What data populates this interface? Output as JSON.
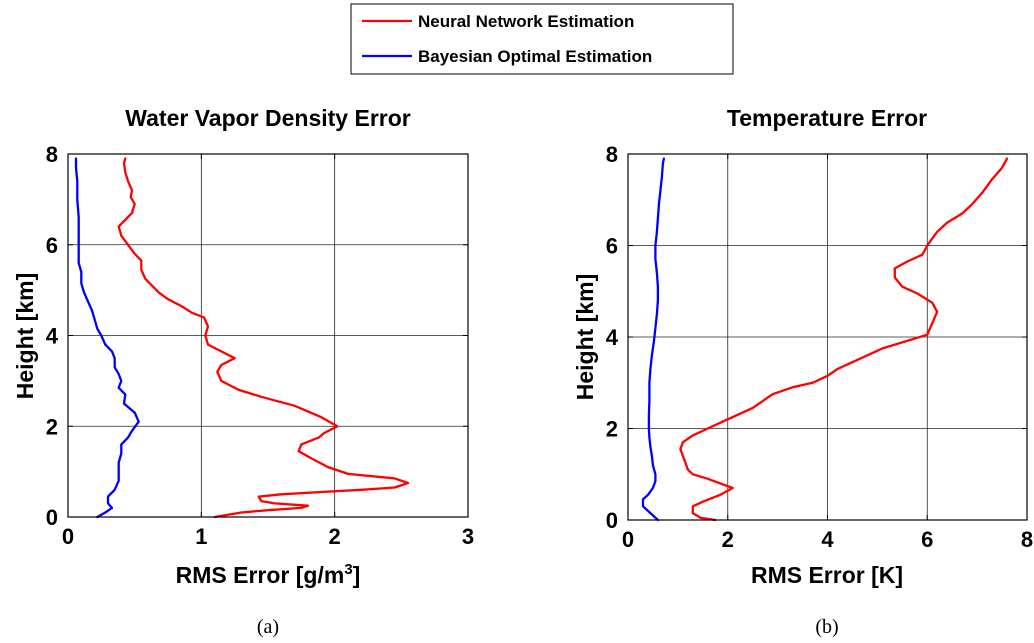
{
  "legend": {
    "entries": [
      {
        "label": "Neural Network Estimation",
        "color": "#ff0000"
      },
      {
        "label": "Bayesian Optimal Estimation",
        "color": "#0000ff"
      }
    ]
  },
  "chart_data": [
    {
      "type": "line",
      "title": "Water Vapor Density Error",
      "xlabel": "RMS Error [g/m",
      "xlabel_sup": "3",
      "xlabel_end": "]",
      "ylabel": "Height [km]",
      "xlim": [
        0,
        3
      ],
      "ylim": [
        0,
        8
      ],
      "xticks": [
        "0",
        "1",
        "2",
        "3"
      ],
      "yticks": [
        "0",
        "2",
        "4",
        "6",
        "8"
      ],
      "grid": true,
      "caption": "(a)",
      "series": [
        {
          "name": "Neural Network Estimation",
          "color": "#ff0000",
          "points": [
            [
              1.1,
              0.0
            ],
            [
              1.3,
              0.1
            ],
            [
              1.5,
              0.15
            ],
            [
              1.75,
              0.2
            ],
            [
              1.8,
              0.25
            ],
            [
              1.55,
              0.3
            ],
            [
              1.45,
              0.35
            ],
            [
              1.43,
              0.45
            ],
            [
              1.6,
              0.5
            ],
            [
              1.9,
              0.55
            ],
            [
              2.2,
              0.6
            ],
            [
              2.45,
              0.65
            ],
            [
              2.55,
              0.75
            ],
            [
              2.45,
              0.85
            ],
            [
              2.1,
              0.95
            ],
            [
              1.95,
              1.1
            ],
            [
              1.82,
              1.3
            ],
            [
              1.73,
              1.45
            ],
            [
              1.75,
              1.6
            ],
            [
              1.88,
              1.75
            ],
            [
              1.92,
              1.85
            ],
            [
              2.02,
              2.0
            ],
            [
              1.9,
              2.2
            ],
            [
              1.7,
              2.45
            ],
            [
              1.45,
              2.65
            ],
            [
              1.28,
              2.8
            ],
            [
              1.15,
              3.0
            ],
            [
              1.12,
              3.2
            ],
            [
              1.15,
              3.35
            ],
            [
              1.25,
              3.5
            ],
            [
              1.15,
              3.65
            ],
            [
              1.05,
              3.8
            ],
            [
              1.03,
              4.0
            ],
            [
              1.05,
              4.2
            ],
            [
              1.02,
              4.4
            ],
            [
              0.93,
              4.5
            ],
            [
              0.85,
              4.65
            ],
            [
              0.75,
              4.8
            ],
            [
              0.68,
              4.95
            ],
            [
              0.63,
              5.1
            ],
            [
              0.58,
              5.25
            ],
            [
              0.55,
              5.45
            ],
            [
              0.55,
              5.65
            ],
            [
              0.5,
              5.8
            ],
            [
              0.45,
              6.0
            ],
            [
              0.4,
              6.2
            ],
            [
              0.38,
              6.4
            ],
            [
              0.43,
              6.55
            ],
            [
              0.48,
              6.7
            ],
            [
              0.5,
              6.9
            ],
            [
              0.47,
              7.05
            ],
            [
              0.48,
              7.2
            ],
            [
              0.45,
              7.4
            ],
            [
              0.43,
              7.6
            ],
            [
              0.42,
              7.8
            ],
            [
              0.43,
              7.9
            ]
          ]
        },
        {
          "name": "Bayesian Optimal Estimation",
          "color": "#0000ff",
          "points": [
            [
              0.22,
              0.0
            ],
            [
              0.28,
              0.1
            ],
            [
              0.33,
              0.2
            ],
            [
              0.3,
              0.3
            ],
            [
              0.3,
              0.45
            ],
            [
              0.35,
              0.6
            ],
            [
              0.38,
              0.8
            ],
            [
              0.38,
              1.0
            ],
            [
              0.38,
              1.2
            ],
            [
              0.4,
              1.4
            ],
            [
              0.4,
              1.6
            ],
            [
              0.45,
              1.75
            ],
            [
              0.48,
              1.9
            ],
            [
              0.53,
              2.1
            ],
            [
              0.5,
              2.3
            ],
            [
              0.42,
              2.5
            ],
            [
              0.43,
              2.7
            ],
            [
              0.38,
              2.85
            ],
            [
              0.4,
              3.0
            ],
            [
              0.38,
              3.15
            ],
            [
              0.35,
              3.3
            ],
            [
              0.35,
              3.5
            ],
            [
              0.33,
              3.65
            ],
            [
              0.28,
              3.8
            ],
            [
              0.25,
              4.0
            ],
            [
              0.22,
              4.15
            ],
            [
              0.2,
              4.35
            ],
            [
              0.18,
              4.55
            ],
            [
              0.15,
              4.75
            ],
            [
              0.12,
              4.95
            ],
            [
              0.1,
              5.15
            ],
            [
              0.1,
              5.4
            ],
            [
              0.08,
              5.6
            ],
            [
              0.08,
              5.9
            ],
            [
              0.08,
              6.2
            ],
            [
              0.08,
              6.6
            ],
            [
              0.07,
              7.0
            ],
            [
              0.07,
              7.4
            ],
            [
              0.06,
              7.7
            ],
            [
              0.06,
              7.9
            ]
          ]
        }
      ]
    },
    {
      "type": "line",
      "title": "Temperature Error",
      "xlabel": "RMS Error [K]",
      "ylabel": "Height [km]",
      "xlim": [
        0,
        8
      ],
      "ylim": [
        0,
        8
      ],
      "xticks": [
        "0",
        "2",
        "4",
        "6",
        "8"
      ],
      "yticks": [
        "0",
        "2",
        "4",
        "6",
        "8"
      ],
      "grid": true,
      "caption": "(b)",
      "series": [
        {
          "name": "Neural Network Estimation",
          "color": "#ff0000",
          "points": [
            [
              1.75,
              0.0
            ],
            [
              1.45,
              0.05
            ],
            [
              1.3,
              0.15
            ],
            [
              1.3,
              0.3
            ],
            [
              1.5,
              0.4
            ],
            [
              1.85,
              0.55
            ],
            [
              2.1,
              0.7
            ],
            [
              1.85,
              0.8
            ],
            [
              1.6,
              0.9
            ],
            [
              1.3,
              1.0
            ],
            [
              1.2,
              1.1
            ],
            [
              1.15,
              1.25
            ],
            [
              1.1,
              1.4
            ],
            [
              1.05,
              1.55
            ],
            [
              1.1,
              1.7
            ],
            [
              1.3,
              1.85
            ],
            [
              1.6,
              2.0
            ],
            [
              1.9,
              2.15
            ],
            [
              2.2,
              2.3
            ],
            [
              2.5,
              2.45
            ],
            [
              2.7,
              2.6
            ],
            [
              2.9,
              2.75
            ],
            [
              3.3,
              2.9
            ],
            [
              3.7,
              3.0
            ],
            [
              4.0,
              3.15
            ],
            [
              4.2,
              3.3
            ],
            [
              4.5,
              3.45
            ],
            [
              4.8,
              3.6
            ],
            [
              5.1,
              3.75
            ],
            [
              5.4,
              3.85
            ],
            [
              5.7,
              3.95
            ],
            [
              6.0,
              4.05
            ],
            [
              6.1,
              4.3
            ],
            [
              6.2,
              4.55
            ],
            [
              6.1,
              4.75
            ],
            [
              5.8,
              4.95
            ],
            [
              5.5,
              5.1
            ],
            [
              5.35,
              5.3
            ],
            [
              5.35,
              5.5
            ],
            [
              5.6,
              5.65
            ],
            [
              5.9,
              5.8
            ],
            [
              6.0,
              6.0
            ],
            [
              6.1,
              6.15
            ],
            [
              6.2,
              6.3
            ],
            [
              6.4,
              6.5
            ],
            [
              6.7,
              6.7
            ],
            [
              6.9,
              6.9
            ],
            [
              7.1,
              7.15
            ],
            [
              7.3,
              7.45
            ],
            [
              7.5,
              7.7
            ],
            [
              7.6,
              7.9
            ]
          ]
        },
        {
          "name": "Bayesian Optimal Estimation",
          "color": "#0000ff",
          "points": [
            [
              0.6,
              0.0
            ],
            [
              0.5,
              0.1
            ],
            [
              0.4,
              0.2
            ],
            [
              0.3,
              0.3
            ],
            [
              0.3,
              0.45
            ],
            [
              0.4,
              0.55
            ],
            [
              0.5,
              0.7
            ],
            [
              0.55,
              0.85
            ],
            [
              0.55,
              1.0
            ],
            [
              0.5,
              1.2
            ],
            [
              0.48,
              1.4
            ],
            [
              0.45,
              1.6
            ],
            [
              0.43,
              1.8
            ],
            [
              0.42,
              2.0
            ],
            [
              0.42,
              2.3
            ],
            [
              0.43,
              2.6
            ],
            [
              0.43,
              3.0
            ],
            [
              0.45,
              3.3
            ],
            [
              0.48,
              3.6
            ],
            [
              0.52,
              3.9
            ],
            [
              0.55,
              4.2
            ],
            [
              0.58,
              4.5
            ],
            [
              0.6,
              4.8
            ],
            [
              0.6,
              5.1
            ],
            [
              0.58,
              5.4
            ],
            [
              0.55,
              5.7
            ],
            [
              0.55,
              6.0
            ],
            [
              0.58,
              6.3
            ],
            [
              0.6,
              6.6
            ],
            [
              0.62,
              6.9
            ],
            [
              0.65,
              7.2
            ],
            [
              0.68,
              7.5
            ],
            [
              0.7,
              7.8
            ],
            [
              0.72,
              7.9
            ]
          ]
        }
      ]
    }
  ]
}
